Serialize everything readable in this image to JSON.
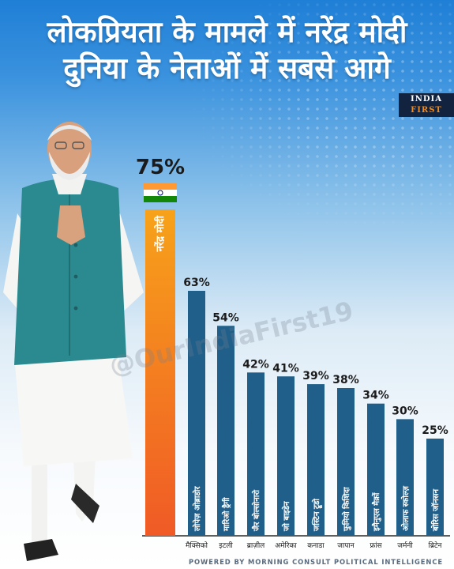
{
  "headline": {
    "line1": "लोकप्रियता के मामले में नरेंद्र मोदी",
    "line2": "दुनिया के नेताओं में सबसे आगे"
  },
  "logo": {
    "line1": "INDIA",
    "line2": "FIRST"
  },
  "watermark": "@OurIndiaFirst19",
  "footer": "POWERED BY MORNING CONSULT POLITICAL INTELLIGENCE",
  "colors": {
    "bar": "#1f5f8a",
    "highlight_top": "#f7a21a",
    "highlight_bottom": "#f05a26",
    "text_dark": "#1b1b1b"
  },
  "chart_data": {
    "type": "bar",
    "title": "लोकप्रियता के मामले में नरेंद्र मोदी दुनिया के नेताओं में सबसे आगे",
    "xlabel": "",
    "ylabel": "",
    "ylim": [
      0,
      100
    ],
    "categories": [
      "",
      "मैक्सिको",
      "इटली",
      "ब्राज़ील",
      "अमेरिका",
      "कनाडा",
      "जापान",
      "फ्रांस",
      "जर्मनी",
      "ब्रिटेन"
    ],
    "leaders": [
      "नरेंद्र मोदी",
      "लोपेज़ ओब्राडोर",
      "मारिओ ड्रैगी",
      "जैर बोल्सोनारो",
      "जो बाइडेन",
      "जस्टिन ट्रूडो",
      "फुमियो किशिदा",
      "इमैनुएल मैक्रों",
      "ओलाफ स्कोल्ज़",
      "बोरिस जॉनसन"
    ],
    "values": [
      75,
      63,
      54,
      42,
      41,
      39,
      38,
      34,
      30,
      25
    ],
    "value_labels": [
      "75%",
      "63%",
      "54%",
      "42%",
      "41%",
      "39%",
      "38%",
      "34%",
      "30%",
      "25%"
    ],
    "highlight_index": 0,
    "grid": false,
    "legend": "none"
  }
}
